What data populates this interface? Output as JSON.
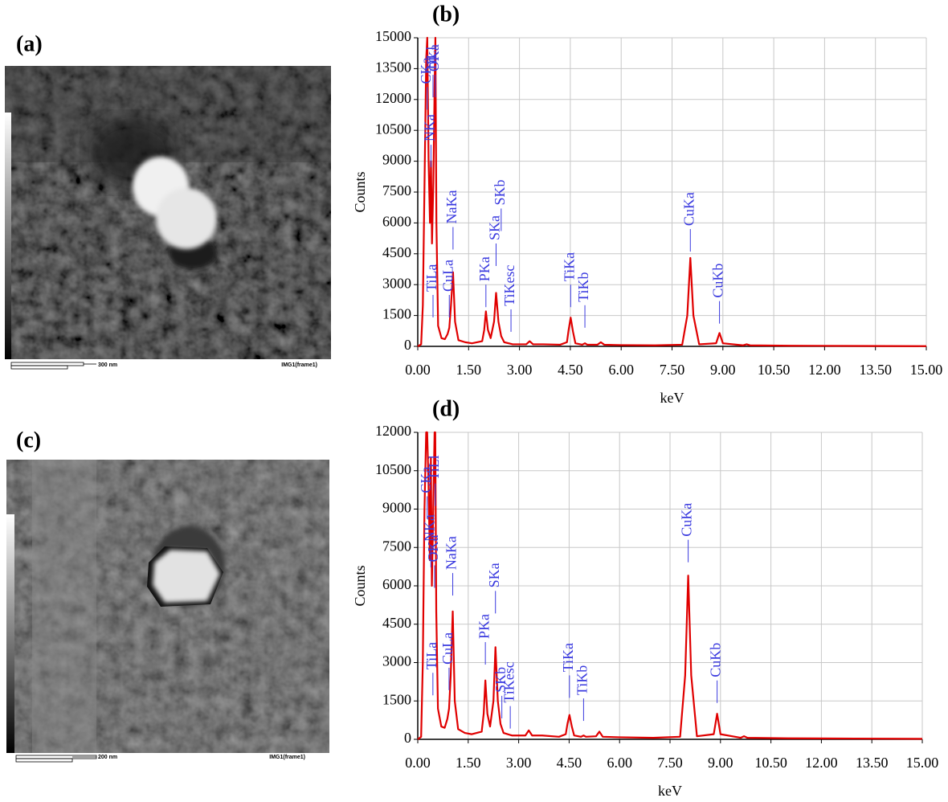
{
  "images": [
    {
      "label": "(a)",
      "scale_bar": "300 nm",
      "frame": "IMG1(frame1)"
    },
    {
      "label": "(c)",
      "scale_bar": "200 nm",
      "frame": "IMG1(frame1)"
    }
  ],
  "chart_data": [
    {
      "type": "line",
      "title": "(b)",
      "xlabel": "keV",
      "ylabel": "Counts",
      "color": "#e00000",
      "grid": true,
      "annotation_color": "#3a3adf",
      "x": [
        0,
        0.1,
        0.15,
        0.2,
        0.25,
        0.28,
        0.32,
        0.36,
        0.39,
        0.42,
        0.46,
        0.5,
        0.52,
        0.55,
        0.6,
        0.7,
        0.8,
        0.88,
        0.93,
        0.98,
        1.04,
        1.1,
        1.2,
        1.4,
        1.6,
        1.9,
        1.96,
        2.01,
        2.07,
        2.15,
        2.25,
        2.31,
        2.38,
        2.46,
        2.55,
        2.8,
        3.2,
        3.3,
        3.4,
        3.7,
        4.2,
        4.4,
        4.45,
        4.51,
        4.58,
        4.65,
        4.85,
        4.93,
        5.0,
        5.3,
        5.4,
        5.5,
        6.0,
        7.0,
        7.8,
        7.95,
        8.04,
        8.13,
        8.3,
        8.8,
        8.9,
        9.0,
        9.6,
        9.7,
        9.8,
        11,
        13,
        15
      ],
      "values": [
        0,
        100,
        2000,
        8000,
        14000,
        15000,
        9000,
        6000,
        9000,
        5000,
        8000,
        13000,
        15000,
        6000,
        1000,
        400,
        350,
        600,
        900,
        2000,
        3600,
        1200,
        300,
        200,
        150,
        250,
        800,
        1700,
        800,
        400,
        1200,
        2600,
        1200,
        500,
        200,
        100,
        100,
        250,
        100,
        100,
        80,
        200,
        800,
        1400,
        700,
        150,
        80,
        150,
        80,
        80,
        200,
        80,
        60,
        50,
        80,
        1500,
        4300,
        1500,
        100,
        150,
        650,
        150,
        50,
        100,
        50,
        30,
        20,
        10
      ],
      "annotations": [
        {
          "text": "CKa",
          "x": 0.28,
          "y": 12600
        },
        {
          "text": "NKa",
          "x": 0.39,
          "y": 9800
        },
        {
          "text": "TiLl",
          "x": 0.45,
          "y": 13200
        },
        {
          "text": "OKa",
          "x": 0.52,
          "y": 13200
        },
        {
          "text": "TiLa",
          "x": 0.45,
          "y": 2500
        },
        {
          "text": "CuLa",
          "x": 0.93,
          "y": 2500
        },
        {
          "text": "NaKa",
          "x": 1.04,
          "y": 5800
        },
        {
          "text": "PKa",
          "x": 2.01,
          "y": 3000
        },
        {
          "text": "SKa",
          "x": 2.31,
          "y": 5000
        },
        {
          "text": "SKb",
          "x": 2.46,
          "y": 6700
        },
        {
          "text": "TiKesc",
          "x": 2.75,
          "y": 1800
        },
        {
          "text": "TiKa",
          "x": 4.51,
          "y": 3000
        },
        {
          "text": "TiKb",
          "x": 4.93,
          "y": 2000
        },
        {
          "text": "CuKa",
          "x": 8.04,
          "y": 5700
        },
        {
          "text": "CuKb",
          "x": 8.9,
          "y": 2200
        }
      ],
      "xlim": [
        0,
        15
      ],
      "xticks": [
        {
          "value": 0,
          "label": "0.00"
        },
        {
          "value": 1.5,
          "label": "1.50"
        },
        {
          "value": 3,
          "label": "3.00"
        },
        {
          "value": 4.5,
          "label": "4.50"
        },
        {
          "value": 6,
          "label": "6.00"
        },
        {
          "value": 7.5,
          "label": "7.50"
        },
        {
          "value": 9,
          "label": "9.00"
        },
        {
          "value": 10.5,
          "label": "10.50"
        },
        {
          "value": 12,
          "label": "12.00"
        },
        {
          "value": 13.5,
          "label": "13.50"
        },
        {
          "value": 15,
          "label": "15.00"
        }
      ],
      "ylim": [
        0,
        15000
      ],
      "yticks": [
        0,
        1500,
        3000,
        4500,
        6000,
        7500,
        9000,
        10500,
        12000,
        13500,
        15000
      ]
    },
    {
      "type": "line",
      "title": "(d)",
      "xlabel": "keV",
      "ylabel": "Counts",
      "color": "#e00000",
      "grid": true,
      "annotation_color": "#3a3adf",
      "x": [
        0,
        0.1,
        0.15,
        0.2,
        0.25,
        0.28,
        0.32,
        0.36,
        0.39,
        0.42,
        0.46,
        0.5,
        0.52,
        0.55,
        0.6,
        0.7,
        0.8,
        0.88,
        0.93,
        0.98,
        1.04,
        1.1,
        1.2,
        1.4,
        1.6,
        1.9,
        1.96,
        2.01,
        2.07,
        2.15,
        2.25,
        2.31,
        2.38,
        2.46,
        2.55,
        2.8,
        3.2,
        3.3,
        3.4,
        3.7,
        4.2,
        4.4,
        4.45,
        4.51,
        4.58,
        4.65,
        4.85,
        4.93,
        5.0,
        5.3,
        5.4,
        5.5,
        6.0,
        7.0,
        7.8,
        7.95,
        8.04,
        8.13,
        8.3,
        8.8,
        8.9,
        9.0,
        9.6,
        9.7,
        9.8,
        11,
        13,
        15
      ],
      "values": [
        0,
        100,
        3000,
        9000,
        12000,
        12000,
        10000,
        7000,
        11000,
        6000,
        9000,
        12000,
        12000,
        5000,
        1200,
        500,
        450,
        800,
        1200,
        2500,
        5000,
        1500,
        400,
        250,
        200,
        300,
        1000,
        2300,
        1000,
        500,
        1500,
        3600,
        1500,
        600,
        250,
        150,
        150,
        350,
        150,
        150,
        100,
        200,
        600,
        950,
        500,
        150,
        100,
        150,
        100,
        120,
        300,
        100,
        80,
        60,
        100,
        2500,
        6400,
        2500,
        120,
        200,
        1000,
        200,
        60,
        120,
        60,
        40,
        30,
        20
      ],
      "annotations": [
        {
          "text": "CKa",
          "x": 0.28,
          "y": 9500
        },
        {
          "text": "NKa",
          "x": 0.39,
          "y": 7600
        },
        {
          "text": "OKa",
          "x": 0.5,
          "y": 6800
        },
        {
          "text": "TiLl",
          "x": 0.52,
          "y": 10000
        },
        {
          "text": "TiLa",
          "x": 0.45,
          "y": 2600
        },
        {
          "text": "CuLa",
          "x": 0.93,
          "y": 2800
        },
        {
          "text": "NaKa",
          "x": 1.04,
          "y": 6500
        },
        {
          "text": "PKa",
          "x": 2.01,
          "y": 3800
        },
        {
          "text": "SKa",
          "x": 2.31,
          "y": 5800
        },
        {
          "text": "SKb",
          "x": 2.5,
          "y": 1700
        },
        {
          "text": "TiKesc",
          "x": 2.75,
          "y": 1300
        },
        {
          "text": "TiKa",
          "x": 4.51,
          "y": 2500
        },
        {
          "text": "TiKb",
          "x": 4.93,
          "y": 1600
        },
        {
          "text": "CuKa",
          "x": 8.04,
          "y": 7800
        },
        {
          "text": "CuKb",
          "x": 8.9,
          "y": 2300
        }
      ],
      "xlim": [
        0,
        15
      ],
      "xticks": [
        {
          "value": 0,
          "label": "0.00"
        },
        {
          "value": 1.5,
          "label": "1.50"
        },
        {
          "value": 3,
          "label": "3.00"
        },
        {
          "value": 4.5,
          "label": "4.50"
        },
        {
          "value": 6,
          "label": "6.00"
        },
        {
          "value": 7.5,
          "label": "7.50"
        },
        {
          "value": 9,
          "label": "9.00"
        },
        {
          "value": 10.5,
          "label": "10.50"
        },
        {
          "value": 12,
          "label": "12.00"
        },
        {
          "value": 13.5,
          "label": "13.50"
        },
        {
          "value": 15,
          "label": "15.00"
        }
      ],
      "ylim": [
        0,
        12000
      ],
      "yticks": [
        0,
        1500,
        3000,
        4500,
        6000,
        7500,
        9000,
        10500,
        12000
      ]
    }
  ]
}
